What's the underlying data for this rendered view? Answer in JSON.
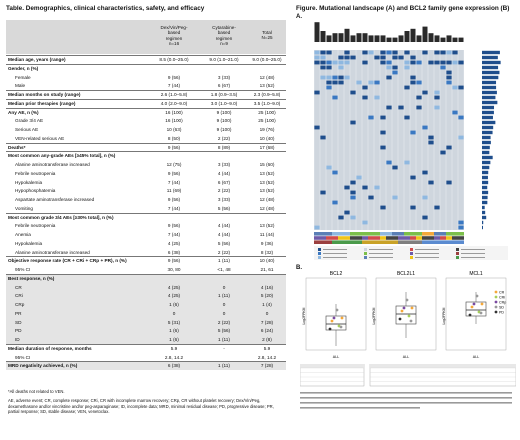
{
  "table": {
    "title": "Table. Demographics, clinical characteristics, safety, and efficacy",
    "headers": {
      "c1": [
        "Dex/Vin/Peg-",
        "based",
        "regimen",
        "n=16"
      ],
      "c2": [
        "Cytarabine-",
        "based",
        "regimen",
        "n=9"
      ],
      "c3": [
        "Total",
        "N=25"
      ]
    },
    "rows": [
      {
        "label": "Median age, years (range)",
        "v": [
          "8.5 (0.0–25.0)",
          "9.0 (1.0–21.0)",
          "9.0 (0.0–25.0)"
        ],
        "bold": true
      },
      {
        "label": "Gender, n (%)",
        "v": [
          "",
          "",
          ""
        ],
        "bold": true
      },
      {
        "label": "Female",
        "v": [
          "9 (56)",
          "3 (33)",
          "12 (48)"
        ],
        "ind": true
      },
      {
        "label": "Male",
        "v": [
          "7 (44)",
          "6 (67)",
          "13 (52)"
        ],
        "ind": true
      },
      {
        "label": "Median months on study (range)",
        "v": [
          "2.6 (1.0–5.8)",
          "1.8 (0.9–3.5)",
          "2.3 (0.9–5.8)"
        ],
        "bold": true
      },
      {
        "label": "Median prior therapies (range)",
        "v": [
          "4.0 (2.0–9.0)",
          "3.0 (1.0–9.0)",
          "3.5 (1.0–9.0)"
        ],
        "bold": true
      },
      {
        "label": "Any AE, n (%)",
        "v": [
          "16 (100)",
          "9 (100)",
          "25 (100)"
        ],
        "bold": true
      },
      {
        "label": "Grade 3/4 AE",
        "v": [
          "16 (100)",
          "9 (100)",
          "25 (100)"
        ],
        "ind": true
      },
      {
        "label": "Serious AE",
        "v": [
          "10 (63)",
          "9 (100)",
          "19 (76)"
        ],
        "ind": true
      },
      {
        "label": "VEN-related serious AE",
        "v": [
          "8 (50)",
          "2 (22)",
          "10 (40)"
        ],
        "ind": true
      },
      {
        "label": "Deaths*",
        "v": [
          "9 (56)",
          "8 (89)",
          "17 (68)"
        ],
        "bold": true
      },
      {
        "label": "Most common any-grade AEs [≥45% total], n (%)",
        "v": [
          "",
          "",
          ""
        ],
        "bold": true
      },
      {
        "label": "Alanine aminotransferase increased",
        "v": [
          "12 (75)",
          "3 (33)",
          "15 (60)"
        ],
        "ind": true
      },
      {
        "label": "Febrile neutropenia",
        "v": [
          "9 (56)",
          "4 (44)",
          "13 (52)"
        ],
        "ind": true
      },
      {
        "label": "Hypokalemia",
        "v": [
          "7 (44)",
          "6 (67)",
          "13 (52)"
        ],
        "ind": true
      },
      {
        "label": "Hypophosphatemia",
        "v": [
          "11 (69)",
          "2 (22)",
          "13 (52)"
        ],
        "ind": true
      },
      {
        "label": "Aspartate aminotransferase increased",
        "v": [
          "9 (56)",
          "3 (33)",
          "12 (48)"
        ],
        "ind": true
      },
      {
        "label": "Vomiting",
        "v": [
          "7 (44)",
          "5 (56)",
          "12 (48)"
        ],
        "ind": true
      },
      {
        "label": "Most common grade 3/4 AEs [≥30% total], n (%)",
        "v": [
          "",
          "",
          ""
        ],
        "bold": true
      },
      {
        "label": "Febrile neutropenia",
        "v": [
          "9 (56)",
          "4 (44)",
          "13 (52)"
        ],
        "ind": true
      },
      {
        "label": "Anemia",
        "v": [
          "7 (44)",
          "4 (44)",
          "11 (44)"
        ],
        "ind": true
      },
      {
        "label": "Hypokalemia",
        "v": [
          "4 (25)",
          "5 (56)",
          "9 (36)"
        ],
        "ind": true
      },
      {
        "label": "Alanine aminotransferase increased",
        "v": [
          "6 (38)",
          "2 (22)",
          "8 (32)"
        ],
        "ind": true
      },
      {
        "label": "Objective response rate (CR + CRi + CRp + PR), n (%)",
        "v": [
          "9 (56)",
          "1 (11)",
          "10 (40)"
        ],
        "bold": true
      },
      {
        "label": "95% CI",
        "v": [
          "30, 80",
          "<1, 48",
          "21, 61"
        ],
        "ind": true
      },
      {
        "label": "Best response, n (%)",
        "v": [
          "",
          "",
          ""
        ],
        "bold": true
      },
      {
        "label": "CR",
        "v": [
          "4 (25)",
          "0",
          "4 (16)"
        ],
        "ind": true
      },
      {
        "label": "CRi",
        "v": [
          "4 (25)",
          "1 (11)",
          "5 (20)"
        ],
        "ind": true
      },
      {
        "label": "CRp",
        "v": [
          "1 (6)",
          "0",
          "1 (4)"
        ],
        "ind": true
      },
      {
        "label": "PR",
        "v": [
          "0",
          "0",
          "0"
        ],
        "ind": true
      },
      {
        "label": "SD",
        "v": [
          "5 (31)",
          "2 (22)",
          "7 (28)"
        ],
        "ind": true
      },
      {
        "label": "PD",
        "v": [
          "1 (6)",
          "5 (56)",
          "6 (24)"
        ],
        "ind": true
      },
      {
        "label": "ID",
        "v": [
          "1 (6)",
          "1 (11)",
          "2 (8)"
        ],
        "ind": true
      },
      {
        "label": "Median duration of response, months",
        "v": [
          "5.9",
          "-",
          "5.9"
        ],
        "bold": true
      },
      {
        "label": "95% CI",
        "v": [
          "2.8, 14.2",
          "",
          "2.8, 14.2"
        ],
        "ind": true
      },
      {
        "label": "MRD negativity achieved, n (%)",
        "v": [
          "6 (38)",
          "1 (11)",
          "7 (28)"
        ],
        "bold": true
      }
    ],
    "footnote1": "*All deaths not related to VEN.",
    "footnote2": "AE, adverse event; CR, complete response; CRi, CR with incomplete marrow recovery; CRp, CR without platelet recovery; Dex/Vin/Peg, dexamethasone and/or vincristine and/or peg-asparaginase; ID, incomplete data; MRD, minimal residual disease; PD, progressive disease; PR, partial response; SD, stable disease; VEN, venetoclax."
  },
  "figure": {
    "title": "Figure. Mutational landscape (A) and BCL2 family gene expression (B)",
    "panel_a": "A.",
    "panel_b": "B.",
    "plots": [
      {
        "title": "BCL2",
        "xlabel": "ALL",
        "ylabel": "Log2FPKM"
      },
      {
        "title": "BCL2L1",
        "xlabel": "ALL",
        "ylabel": "Log2FPKM"
      },
      {
        "title": "MCL1",
        "xlabel": "ALL",
        "ylabel": "Log2FPKM"
      }
    ],
    "legend": [
      "CR",
      "CRi",
      "CRp",
      "SD",
      "PD"
    ],
    "legend_colors": [
      "#f4a83a",
      "#a6cf5a",
      "#7a4aa0",
      "#999999",
      "#333333"
    ],
    "colors": {
      "dark_blue": "#1f4e8c",
      "light_blue": "#8fb8e0",
      "green": "#7cbf4a",
      "grey": "#cfd3d8"
    }
  }
}
